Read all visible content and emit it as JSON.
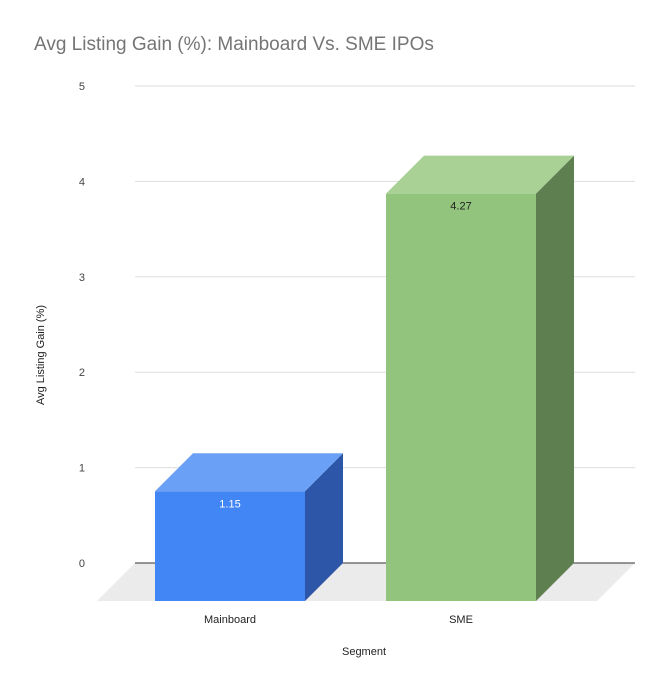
{
  "chart_data": {
    "type": "bar",
    "title": "Avg Listing Gain (%): Mainboard Vs. SME IPOs",
    "xlabel": "Segment",
    "ylabel": "Avg Listing Gain (%)",
    "categories": [
      "Mainboard",
      "SME"
    ],
    "values": [
      1.15,
      4.27
    ],
    "data_labels": [
      "1.15",
      "4.27"
    ],
    "ylim": [
      0,
      5
    ],
    "yticks": [
      "0",
      "1",
      "2",
      "3",
      "4",
      "5"
    ],
    "grid": true,
    "style": "3d",
    "colors": {
      "front": [
        "#4285f4",
        "#93c47d"
      ],
      "top": [
        "#6aa0f6",
        "#a9d196"
      ],
      "side": [
        "#2d56a8",
        "#5e7f4f"
      ],
      "label": [
        "#ffffff",
        "#222222"
      ],
      "grid": "#dddddd",
      "floor": "#ebebeb"
    }
  }
}
